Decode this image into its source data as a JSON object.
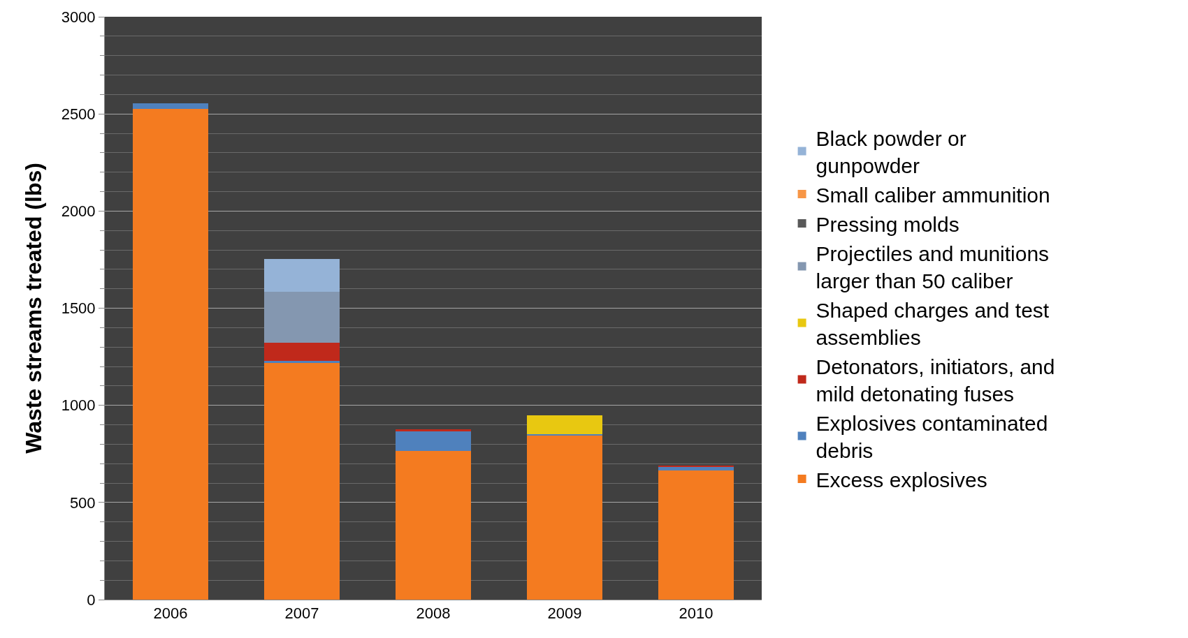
{
  "chart_data": {
    "type": "bar",
    "stacked": true,
    "ylabel": "Waste streams treated (lbs)",
    "categories": [
      "2006",
      "2007",
      "2008",
      "2009",
      "2010"
    ],
    "series": [
      {
        "name": "Excess explosives",
        "color": "#f47b20",
        "values": [
          2525,
          1218,
          765,
          846,
          665
        ]
      },
      {
        "name": "Explosives contaminated\ndebris",
        "color": "#4f81bd",
        "values": [
          30,
          10,
          100,
          6,
          19
        ]
      },
      {
        "name": "Detonators, initiators, and\nmild detonating fuses",
        "color": "#c0291b",
        "values": [
          0,
          95,
          10,
          0,
          6
        ]
      },
      {
        "name": "Shaped charges and test\nassemblies",
        "color": "#e8c811",
        "values": [
          0,
          0,
          0,
          97,
          0
        ]
      },
      {
        "name": "Projectiles and munitions\nlarger than 50 caliber",
        "color": "#8497b0",
        "values": [
          0,
          260,
          0,
          0,
          0
        ]
      },
      {
        "name": "Pressing molds",
        "color": "#595959",
        "values": [
          0,
          0,
          0,
          0,
          0
        ]
      },
      {
        "name": "Small caliber ammunition",
        "color": "#f79646",
        "values": [
          0,
          0,
          0,
          0,
          0
        ]
      },
      {
        "name": "Black powder or\ngunpowder",
        "color": "#95b3d7",
        "values": [
          0,
          169,
          0,
          0,
          0
        ]
      }
    ],
    "ylim": [
      0,
      3000
    ],
    "yticks": [
      0,
      500,
      1000,
      1500,
      2000,
      2500,
      3000
    ],
    "grid": "y",
    "legend": "right"
  }
}
